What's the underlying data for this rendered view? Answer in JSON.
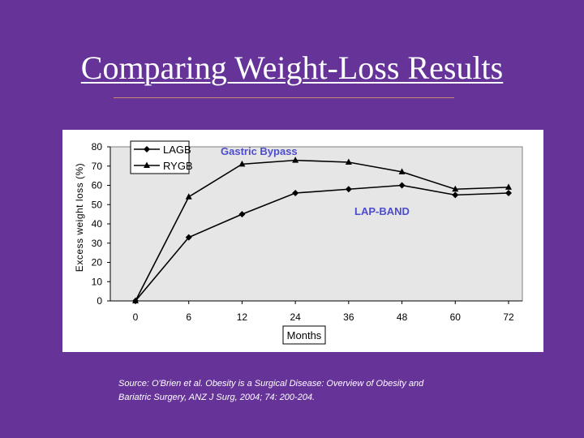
{
  "slide": {
    "title": "Comparing Weight-Loss Results",
    "source_line1": "Source: O'Brien et al. Obesity is a Surgical Disease: Overview of Obesity and",
    "source_line2": "Bariatric Surgery, ANZ J Surg, 2004; 74: 200-204."
  },
  "chart_data": {
    "type": "line",
    "title": "",
    "xlabel": "Months",
    "ylabel": "Excess weight loss (%)",
    "x": [
      0,
      6,
      12,
      24,
      36,
      48,
      60,
      72
    ],
    "x_tick_labels": [
      "0",
      "6",
      "12",
      "24",
      "36",
      "48",
      "60",
      "72"
    ],
    "y_ticks": [
      0,
      10,
      20,
      30,
      40,
      50,
      60,
      70,
      80
    ],
    "ylim": [
      0,
      80
    ],
    "grid": false,
    "legend_position": "top-left",
    "series": [
      {
        "name": "LAGB",
        "marker": "diamond",
        "values": [
          0,
          33,
          45,
          56,
          58,
          60,
          55,
          56
        ]
      },
      {
        "name": "RYGB",
        "marker": "triangle",
        "values": [
          0,
          54,
          71,
          73,
          72,
          67,
          58,
          59
        ]
      }
    ],
    "annotations": [
      {
        "text": "Gastric Bypass",
        "near_series": "RYGB"
      },
      {
        "text": "LAP-BAND",
        "near_series": "LAGB"
      }
    ],
    "colors": {
      "plot_background": "#e6e6e6",
      "line": "#000000",
      "annotation": "#4d4dcc"
    }
  }
}
